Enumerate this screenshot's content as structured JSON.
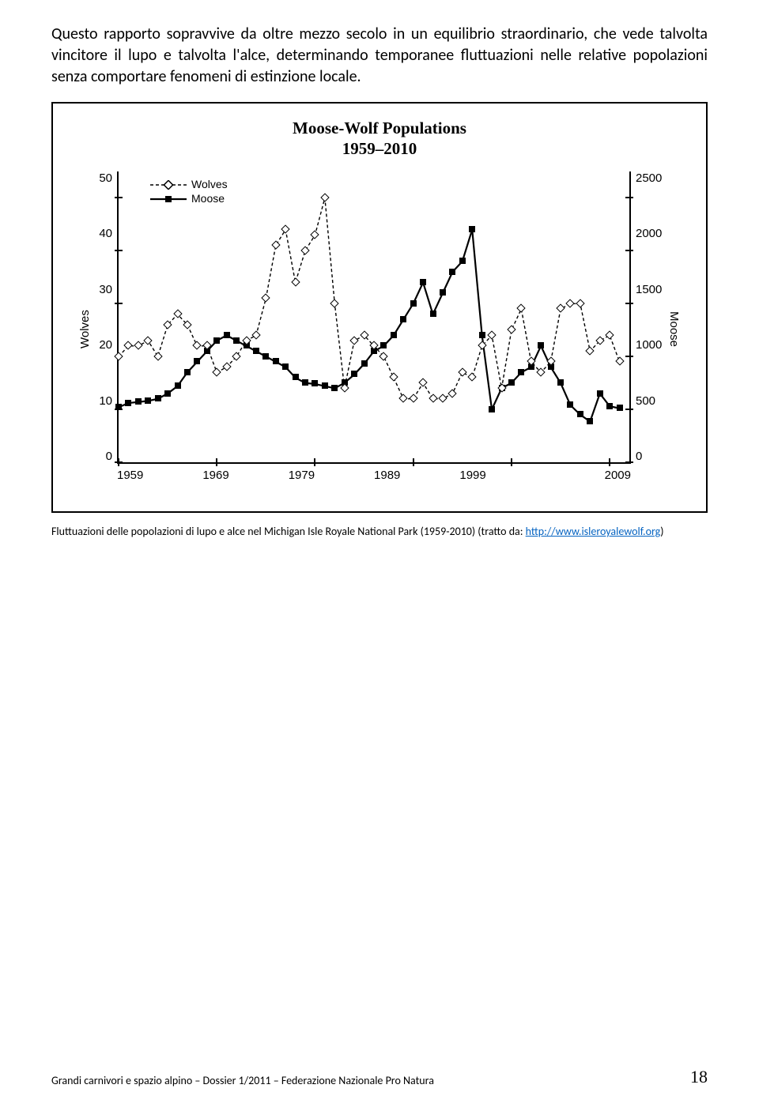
{
  "body_paragraph": "Questo rapporto sopravvive da oltre mezzo secolo in un equilibrio straordinario, che vede talvolta vincitore il lupo e talvolta l'alce, determinando temporanee fluttuazioni nelle relative popolazioni senza comportare fenomeni di estinzione locale.",
  "chart": {
    "type": "dual-axis-line",
    "title_line1": "Moose-Wolf Populations",
    "title_line2": "1959–2010",
    "title_fontsize": 21,
    "title_fontweight": "bold",
    "background_color": "#ffffff",
    "border_color": "#000000",
    "axis_color": "#000000",
    "axis_label_fontsize": 15,
    "tick_fontsize": 15,
    "x": {
      "min": 1959,
      "max": 2011,
      "ticks": [
        1959,
        1969,
        1979,
        1989,
        1999,
        2009
      ]
    },
    "y_left": {
      "label": "Wolves",
      "min": 0,
      "max": 55,
      "ticks": [
        0,
        10,
        20,
        30,
        40,
        50
      ]
    },
    "y_right": {
      "label": "Moose",
      "min": 0,
      "max": 2750,
      "ticks": [
        0,
        500,
        1000,
        1500,
        2000,
        2500
      ]
    },
    "legend": {
      "position": "upper-left",
      "entries": [
        {
          "label": "Wolves",
          "style": "dashed-diamond-open"
        },
        {
          "label": "Moose",
          "style": "solid-square-filled"
        }
      ]
    },
    "series": {
      "wolves": {
        "axis": "left",
        "line_style": "dashed",
        "line_color": "#000000",
        "line_width": 1.4,
        "marker": "diamond-open",
        "marker_size": 8,
        "marker_fill": "#ffffff",
        "marker_stroke": "#000000",
        "x": [
          1959,
          1960,
          1961,
          1962,
          1963,
          1964,
          1965,
          1966,
          1967,
          1968,
          1969,
          1970,
          1971,
          1972,
          1973,
          1974,
          1975,
          1976,
          1977,
          1978,
          1979,
          1980,
          1981,
          1982,
          1983,
          1984,
          1985,
          1986,
          1987,
          1988,
          1989,
          1990,
          1991,
          1992,
          1993,
          1994,
          1995,
          1996,
          1997,
          1998,
          1999,
          2000,
          2001,
          2002,
          2003,
          2004,
          2005,
          2006,
          2007,
          2008,
          2009,
          2010
        ],
        "y": [
          20,
          22,
          22,
          23,
          20,
          26,
          28,
          26,
          22,
          22,
          17,
          18,
          20,
          23,
          24,
          31,
          41,
          44,
          34,
          40,
          43,
          50,
          30,
          14,
          23,
          24,
          22,
          20,
          16,
          12,
          12,
          15,
          12,
          12,
          13,
          17,
          16,
          22,
          24,
          14,
          25,
          29,
          19,
          17,
          19,
          29,
          30,
          30,
          21,
          23,
          24,
          19
        ]
      },
      "moose": {
        "axis": "right",
        "line_style": "solid",
        "line_color": "#000000",
        "line_width": 2.2,
        "marker": "square-filled",
        "marker_size": 8,
        "marker_fill": "#000000",
        "x": [
          1959,
          1960,
          1961,
          1962,
          1963,
          1964,
          1965,
          1966,
          1967,
          1968,
          1969,
          1970,
          1971,
          1972,
          1973,
          1974,
          1975,
          1976,
          1977,
          1978,
          1979,
          1980,
          1981,
          1982,
          1983,
          1984,
          1985,
          1986,
          1987,
          1988,
          1989,
          1990,
          1991,
          1992,
          1993,
          1994,
          1995,
          1996,
          1997,
          1998,
          1999,
          2000,
          2001,
          2002,
          2003,
          2004,
          2005,
          2006,
          2007,
          2008,
          2009,
          2010
        ],
        "y": [
          520,
          560,
          570,
          580,
          600,
          650,
          720,
          850,
          950,
          1050,
          1150,
          1200,
          1150,
          1100,
          1050,
          1000,
          950,
          900,
          800,
          750,
          740,
          720,
          700,
          750,
          830,
          930,
          1050,
          1100,
          1200,
          1350,
          1500,
          1700,
          1400,
          1600,
          1800,
          1900,
          2200,
          1200,
          500,
          700,
          750,
          850,
          900,
          1100,
          900,
          750,
          540,
          450,
          385,
          650,
          530,
          510
        ]
      }
    }
  },
  "caption_text_before_link": "Fluttuazioni delle popolazioni di lupo e alce nel Michigan Isle Royale National Park (1959-2010) (tratto da: ",
  "caption_link_text": "http://www.isleroyalewolf.org",
  "caption_text_after_link": ")",
  "footer_text": "Grandi carnivori e spazio alpino – Dossier 1/2011 – Federazione Nazionale Pro Natura",
  "page_number": "18"
}
